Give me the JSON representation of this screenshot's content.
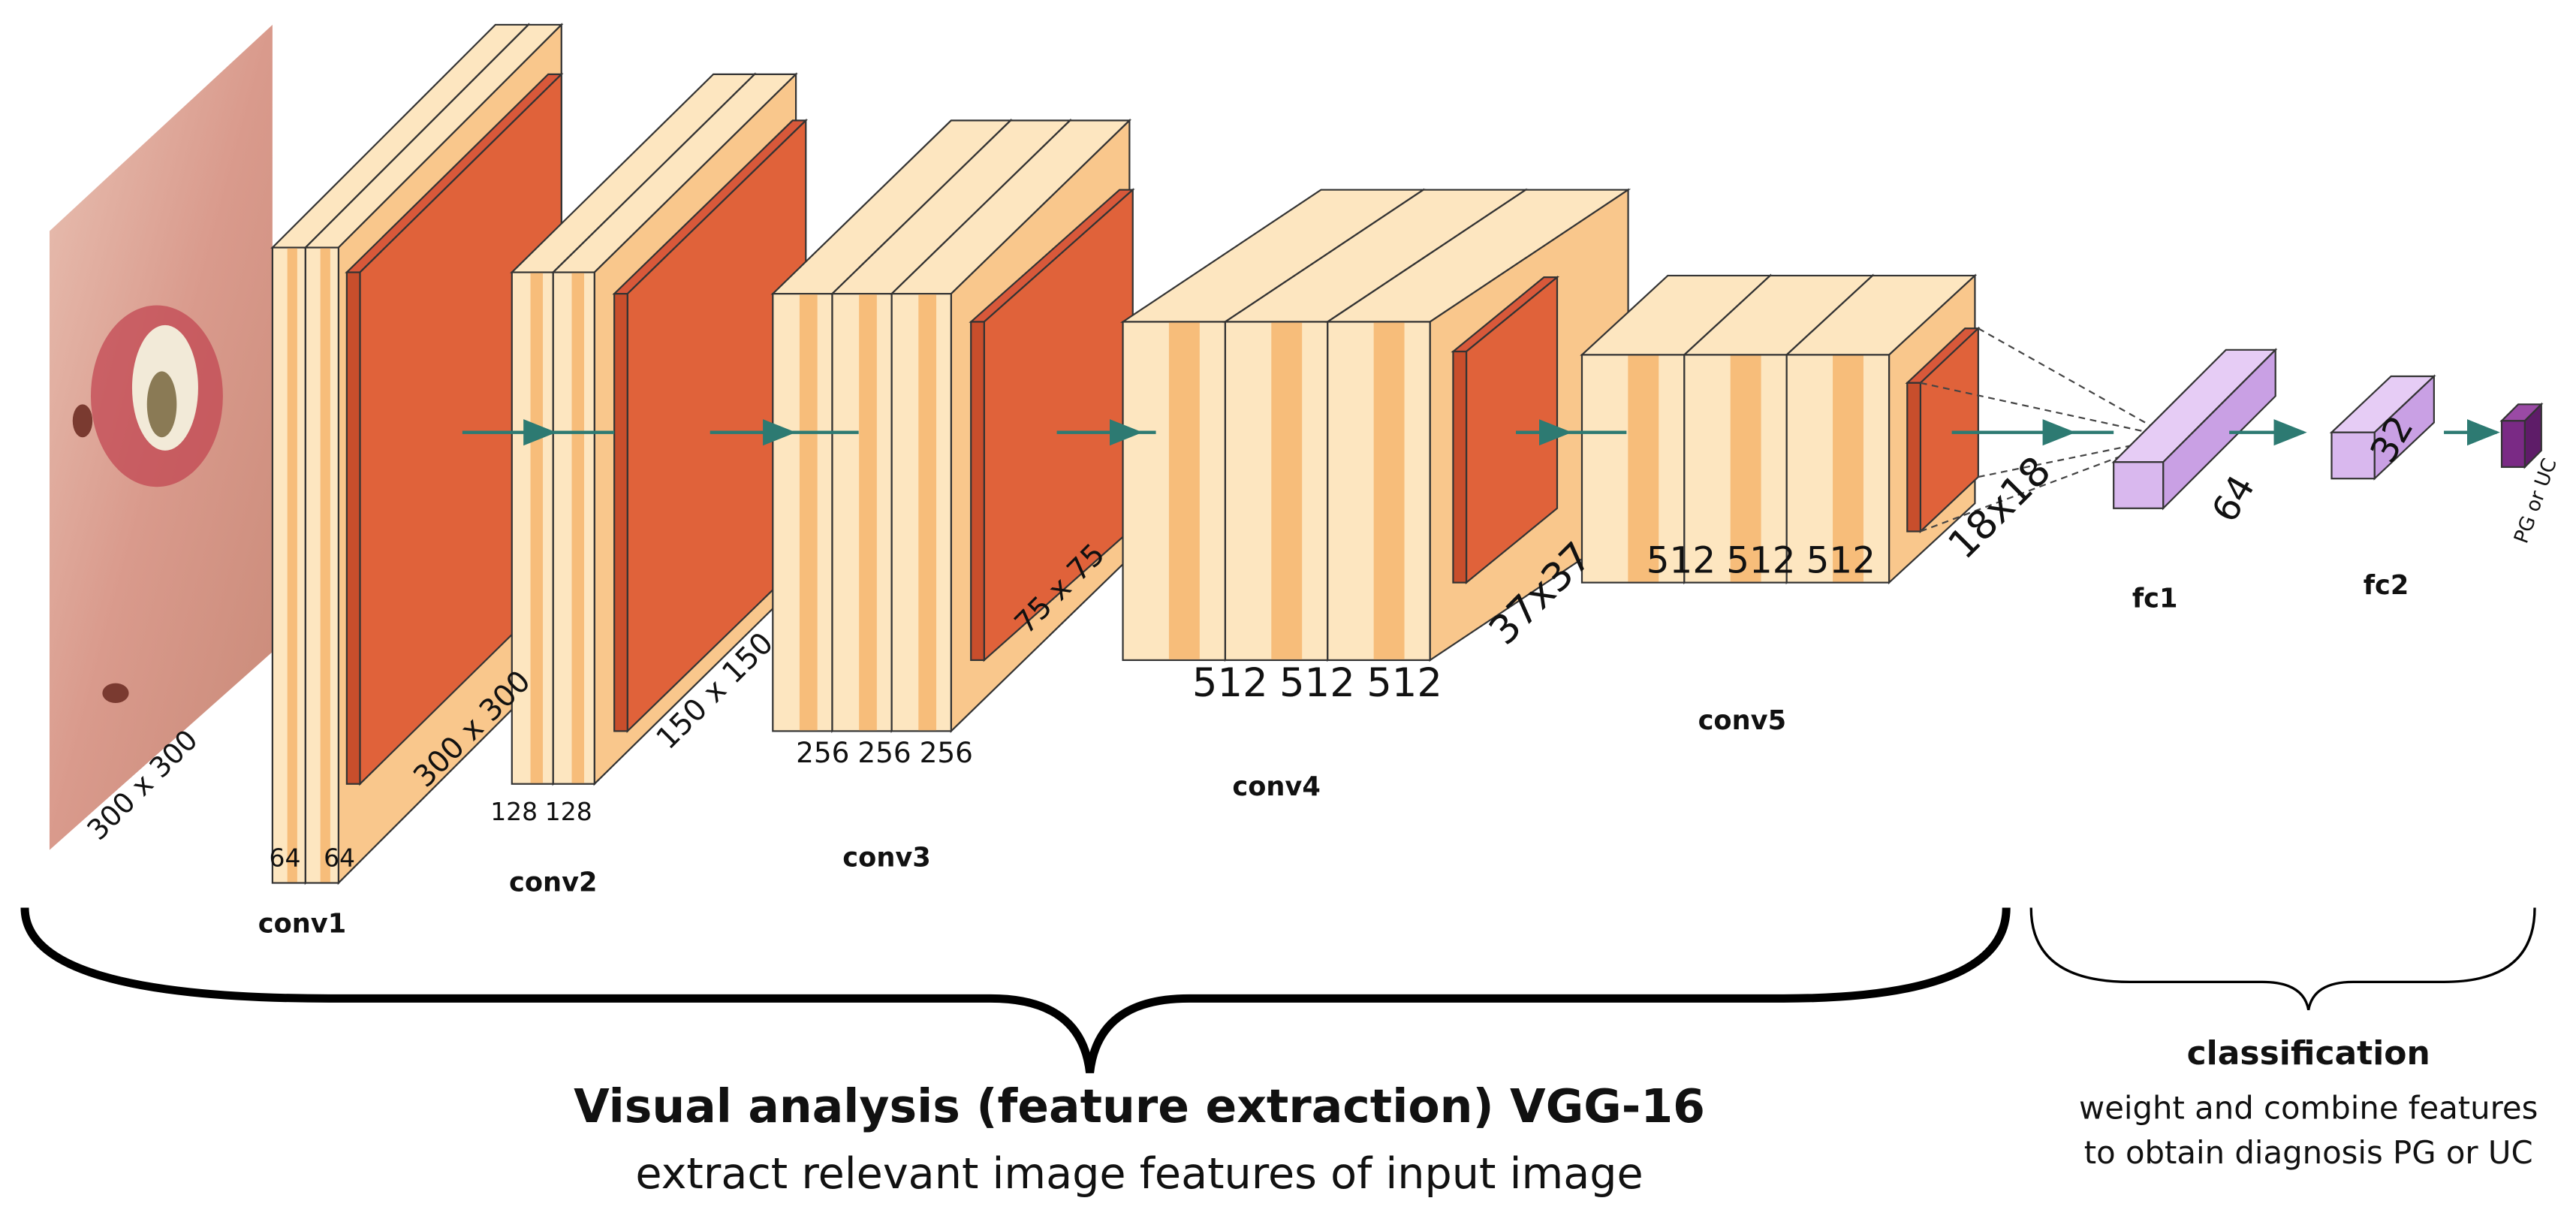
{
  "input": {
    "size_label": "300 x 300"
  },
  "blocks": [
    {
      "name": "conv1",
      "channels": [
        "64",
        "64"
      ],
      "size_label": "300 x 300"
    },
    {
      "name": "conv2",
      "channels": [
        "128",
        "128"
      ],
      "size_label": "150 x 150"
    },
    {
      "name": "conv3",
      "channels": [
        "256",
        "256",
        "256"
      ],
      "size_label": "75 x 75"
    },
    {
      "name": "conv4",
      "channels": [
        "512",
        "512",
        "512"
      ],
      "size_label": "37x37"
    },
    {
      "name": "conv5",
      "channels": [
        "512",
        "512",
        "512"
      ],
      "size_label": "18x18"
    }
  ],
  "fc": [
    {
      "name": "fc1",
      "units": "64"
    },
    {
      "name": "fc2",
      "units": "32"
    }
  ],
  "output": {
    "label": "PG or UC"
  },
  "feature_extraction": {
    "title": "Visual analysis (feature extraction) VGG-16",
    "subtitle": "extract relevant image features of input image"
  },
  "classification": {
    "title": "classification",
    "lines": [
      "weight and combine features",
      "to obtain diagnosis PG or UC"
    ]
  }
}
